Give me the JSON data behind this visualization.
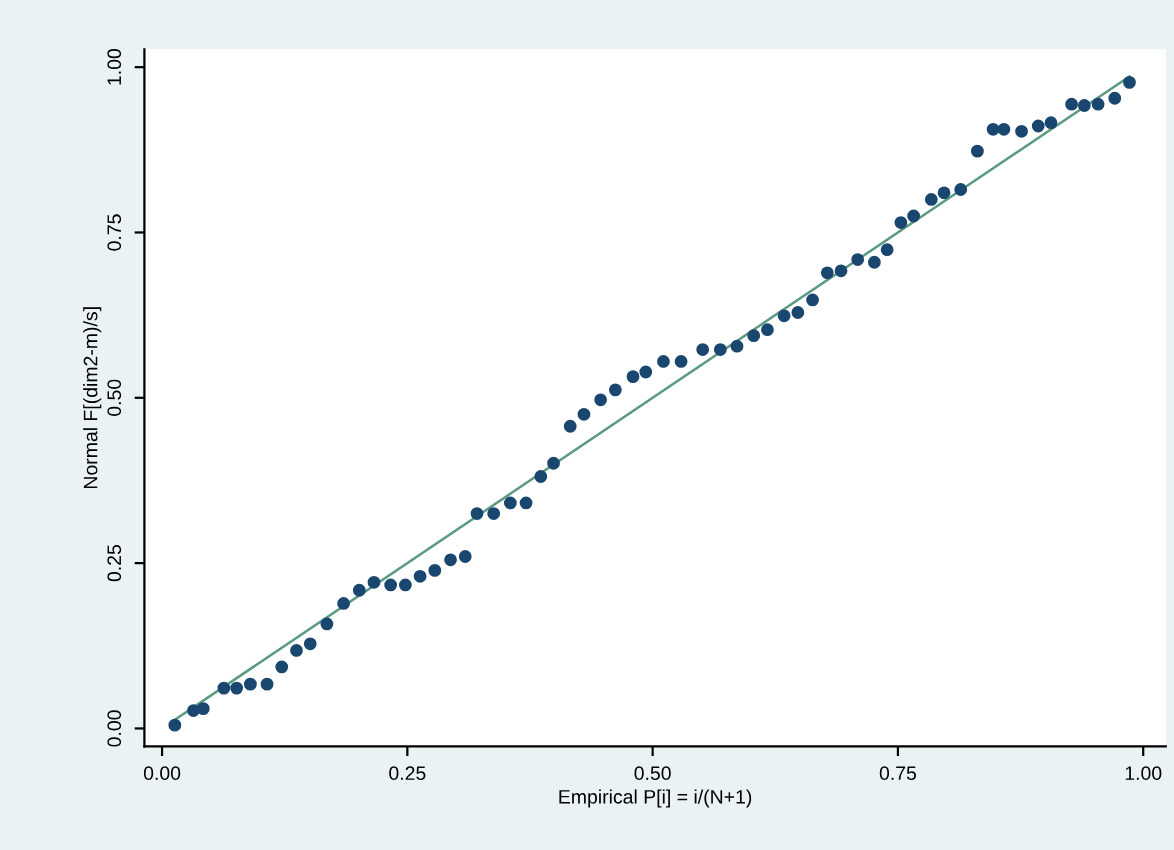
{
  "chart_data": {
    "type": "scatter",
    "xlabel": "Empirical P[i] = i/(N+1)",
    "ylabel": "Normal F[(dim2-m)/s]",
    "xlim": [
      -0.018,
      1.023
    ],
    "ylim": [
      -0.027,
      1.027
    ],
    "xticks": [
      {
        "value": 0,
        "label": "0.00"
      },
      {
        "value": 0.25,
        "label": "0.25"
      },
      {
        "value": 0.5,
        "label": "0.50"
      },
      {
        "value": 0.75,
        "label": "0.75"
      },
      {
        "value": 1,
        "label": "1.00"
      }
    ],
    "yticks": [
      {
        "value": 0,
        "label": "0.00"
      },
      {
        "value": 0.25,
        "label": "0.25"
      },
      {
        "value": 0.5,
        "label": "0.50"
      },
      {
        "value": 0.75,
        "label": "0.75"
      },
      {
        "value": 1,
        "label": "1.00"
      }
    ],
    "grid": false,
    "legend": false,
    "marker": "circle",
    "series": [
      {
        "color": "#1a476f",
        "x": [
          0.013,
          0.032,
          0.042,
          0.063,
          0.076,
          0.09,
          0.107,
          0.122,
          0.137,
          0.151,
          0.168,
          0.185,
          0.201,
          0.216,
          0.233,
          0.248,
          0.263,
          0.278,
          0.294,
          0.309,
          0.321,
          0.338,
          0.355,
          0.371,
          0.386,
          0.399,
          0.416,
          0.43,
          0.447,
          0.462,
          0.48,
          0.493,
          0.511,
          0.529,
          0.551,
          0.569,
          0.586,
          0.603,
          0.617,
          0.634,
          0.648,
          0.663,
          0.678,
          0.692,
          0.709,
          0.726,
          0.739,
          0.753,
          0.766,
          0.784,
          0.797,
          0.814,
          0.831,
          0.847,
          0.858,
          0.876,
          0.893,
          0.906,
          0.927,
          0.94,
          0.954,
          0.971,
          0.986
        ],
        "values": [
          0.005,
          0.027,
          0.03,
          0.061,
          0.061,
          0.067,
          0.067,
          0.093,
          0.118,
          0.128,
          0.158,
          0.189,
          0.209,
          0.221,
          0.217,
          0.217,
          0.23,
          0.239,
          0.255,
          0.26,
          0.325,
          0.325,
          0.341,
          0.341,
          0.381,
          0.401,
          0.457,
          0.475,
          0.497,
          0.512,
          0.532,
          0.539,
          0.555,
          0.555,
          0.573,
          0.573,
          0.578,
          0.594,
          0.603,
          0.624,
          0.629,
          0.648,
          0.689,
          0.692,
          0.709,
          0.705,
          0.724,
          0.765,
          0.775,
          0.8,
          0.81,
          0.815,
          0.873,
          0.906,
          0.906,
          0.903,
          0.911,
          0.916,
          0.944,
          0.942,
          0.944,
          0.953,
          0.977
        ]
      },
      {
        "type": "line",
        "color": "#5a9a82",
        "x": [
          0.013,
          0.986
        ],
        "values": [
          0.013,
          0.986
        ],
        "marker": "none",
        "line_style": "solid"
      }
    ]
  }
}
